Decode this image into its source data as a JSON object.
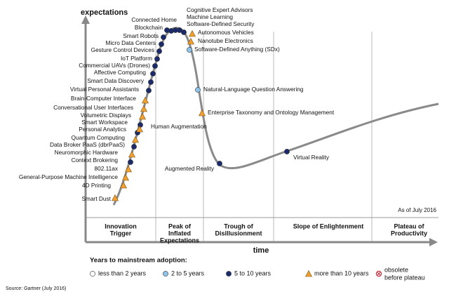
{
  "y_axis_label": "expectations",
  "x_axis_label": "time",
  "as_of": "As of July 2016",
  "source": "Source: Gartner (July 2016)",
  "phases": [
    [
      "Innovation",
      "Trigger"
    ],
    [
      "Peak of",
      "Inflated",
      "Expectations"
    ],
    [
      "Trough of",
      "Disillusionment"
    ],
    [
      "Slope of Enlightenment"
    ],
    [
      "Plateau of",
      "Productivity"
    ]
  ],
  "legend": {
    "title": "Years to mainstream adoption:",
    "items": [
      {
        "label_lines": [
          "less than 2 years"
        ]
      },
      {
        "label_lines": [
          "2 to 5 years"
        ]
      },
      {
        "label_lines": [
          "5 to 10 years"
        ]
      },
      {
        "label_lines": [
          "more than 10 years"
        ]
      },
      {
        "label_lines": [
          "obsolete",
          "before plateau"
        ]
      }
    ]
  },
  "nodes": [
    {
      "label": "Smart Dust"
    },
    {
      "label": "4D Printing"
    },
    {
      "label": "General-Purpose Machine Intelligence"
    },
    {
      "label": "802.11ax"
    },
    {
      "label": "Context Brokering"
    },
    {
      "label": "Neuromorphic Hardware"
    },
    {
      "label": "Data Broker PaaS (dbrPaaS)"
    },
    {
      "label": "Quantum Computing"
    },
    {
      "label": "Personal Analytics"
    },
    {
      "label": "Smart Workspace"
    },
    {
      "label": "Volumetric Displays"
    },
    {
      "label": "Conversational User Interfaces"
    },
    {
      "label": "Brain-Computer Interface"
    },
    {
      "label": "Virtual Personal Assistants"
    },
    {
      "label": "Smart Data Discovery"
    },
    {
      "label": "Affective Computing"
    },
    {
      "label": "Commercial UAVs (Drones)"
    },
    {
      "label": "IoT Platform"
    },
    {
      "label": "Gesture Control Devices"
    },
    {
      "label": "Micro Data Centers"
    },
    {
      "label": "Smart Robots"
    },
    {
      "label": "Blockchain"
    },
    {
      "label": "Connected Home"
    },
    {
      "label": "Human Augmentation"
    },
    {
      "label": "Cognitive Expert Advisors"
    },
    {
      "label": "Machine Learning"
    },
    {
      "label": "Software-Defined Security"
    },
    {
      "label": "Autonomous Vehicles"
    },
    {
      "label": "Nanotube Electronics"
    },
    {
      "label": "Software-Defined Anything (SDx)"
    },
    {
      "label": "Natural-Language Question Answering"
    },
    {
      "label": "Enterprise Taxonomy and Ontology Management"
    },
    {
      "label": "Augmented Reality"
    },
    {
      "label": "Virtual Reality"
    }
  ]
}
